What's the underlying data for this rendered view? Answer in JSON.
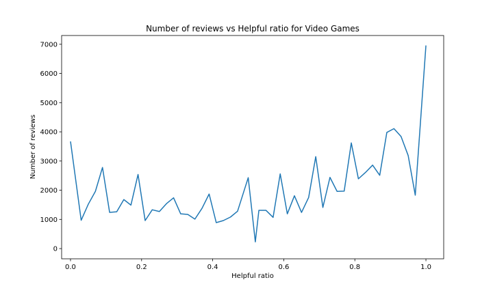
{
  "chart_data": {
    "type": "line",
    "title": "Number of reviews vs Helpful ratio for Video Games",
    "xlabel": "Helpful ratio",
    "ylabel": "Number of reviews",
    "xlim": [
      -0.025,
      1.05
    ],
    "ylim": [
      -350,
      7300
    ],
    "xticks": [
      0.0,
      0.2,
      0.4,
      0.6,
      0.8,
      1.0
    ],
    "xtick_labels": [
      "0.0",
      "0.2",
      "0.4",
      "0.6",
      "0.8",
      "1.0"
    ],
    "yticks": [
      0,
      1000,
      2000,
      3000,
      4000,
      5000,
      6000,
      7000
    ],
    "ytick_labels": [
      "0",
      "1000",
      "2000",
      "3000",
      "4000",
      "5000",
      "6000",
      "7000"
    ],
    "grid": false,
    "color": "#1f77b4",
    "series": [
      {
        "x": [
          0.0,
          0.03,
          0.05,
          0.07,
          0.09,
          0.11,
          0.13,
          0.15,
          0.17,
          0.19,
          0.21,
          0.23,
          0.25,
          0.27,
          0.29,
          0.31,
          0.33,
          0.35,
          0.37,
          0.39,
          0.41,
          0.43,
          0.45,
          0.47,
          0.5,
          0.52,
          0.53,
          0.55,
          0.57,
          0.59,
          0.61,
          0.63,
          0.65,
          0.67,
          0.69,
          0.71,
          0.73,
          0.75,
          0.77,
          0.79,
          0.81,
          0.83,
          0.85,
          0.87,
          0.89,
          0.91,
          0.93,
          0.95,
          0.97,
          1.0
        ],
        "y": [
          3670,
          970,
          1520,
          1960,
          2780,
          1240,
          1260,
          1680,
          1490,
          2540,
          960,
          1330,
          1270,
          1540,
          1740,
          1190,
          1170,
          1010,
          1380,
          1870,
          890,
          960,
          1080,
          1280,
          2430,
          230,
          1310,
          1310,
          1070,
          2560,
          1190,
          1810,
          1240,
          1750,
          3150,
          1410,
          2440,
          1960,
          1970,
          3620,
          2390,
          2610,
          2860,
          2510,
          3980,
          4110,
          3840,
          3190,
          1830,
          6960
        ]
      }
    ]
  }
}
